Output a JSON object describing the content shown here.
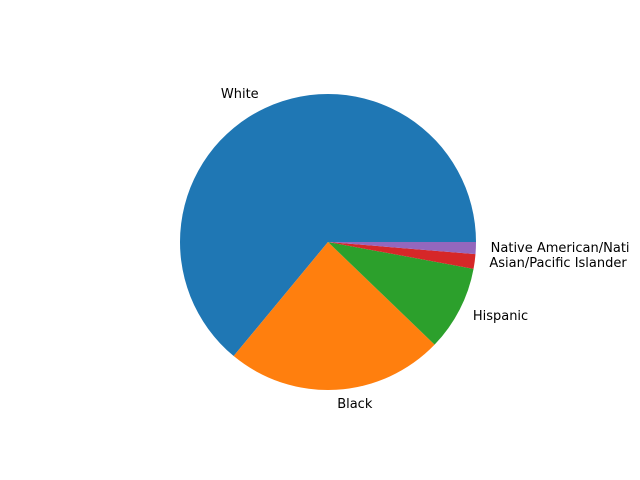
{
  "chart_data": {
    "type": "pie",
    "title": "",
    "start_angle_deg": 0,
    "direction": "counterclockwise",
    "labels": [
      "White",
      "Black",
      "Hispanic",
      "Asian/Pacific Islander",
      "Native American/Nati"
    ],
    "values": [
      64.0,
      23.8,
      9.3,
      1.6,
      1.3
    ],
    "colors": [
      "#1f77b4",
      "#ff7f0e",
      "#2ca02c",
      "#d62728",
      "#9467bd"
    ],
    "legend": "none"
  }
}
